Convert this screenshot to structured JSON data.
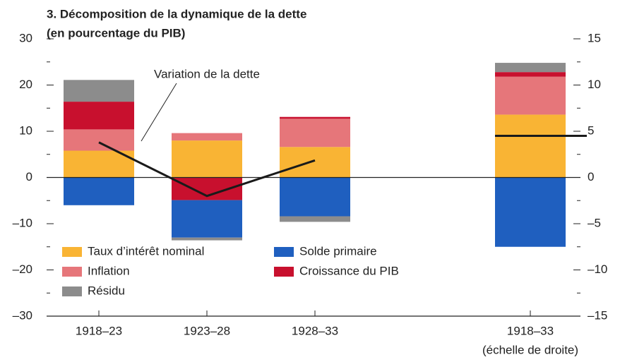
{
  "chart_data": {
    "type": "stacked_bar",
    "title": [
      "3. Décomposition de la dynamique de la dette",
      "(en pourcentage du PIB)"
    ],
    "categories": [
      "1918–23",
      "1923–28",
      "1928–33",
      "1918–33"
    ],
    "x_note": "(échelle de droite)",
    "category_axis": [
      "y",
      "y",
      "y",
      "y2"
    ],
    "series": [
      {
        "name": "Taux d’intérêt nominal",
        "color": "#f9b434",
        "values": [
          5.8,
          8.0,
          6.6,
          6.8
        ]
      },
      {
        "name": "Inflation",
        "color": "#e6767a",
        "values": [
          4.6,
          1.6,
          6.1,
          4.1
        ]
      },
      {
        "name": "Croissance du PIB",
        "color": "#c8102e",
        "values": [
          6.0,
          -4.9,
          0.4,
          0.5
        ]
      },
      {
        "name": "Solde primaire",
        "color": "#1f5fbf",
        "values": [
          -6.0,
          -8.1,
          -8.4,
          -7.5
        ]
      },
      {
        "name": "Résidu",
        "color": "#8c8c8c",
        "values": [
          4.7,
          -0.6,
          -1.2,
          1.0
        ]
      }
    ],
    "line": {
      "name": "Variation de la dette",
      "color": "#1a1a1a",
      "values": [
        7.6,
        -4.0,
        3.7,
        4.5
      ]
    },
    "ylim": [
      -30,
      30
    ],
    "yticks": [
      {
        "value": -30,
        "label": "–30"
      },
      {
        "value": -20,
        "label": "–20"
      },
      {
        "value": -10,
        "label": "–10"
      },
      0,
      10,
      20,
      30
    ],
    "yticks_minor": [
      -25,
      -15,
      -5,
      5,
      15,
      25
    ],
    "y2lim": [
      -15,
      15
    ],
    "y2ticks": [
      {
        "value": -15,
        "label": "–15"
      },
      {
        "value": -10,
        "label": "–10"
      },
      {
        "value": -5,
        "label": "–5"
      },
      0,
      5,
      10,
      15
    ],
    "y2ticks_minor": [
      -12.5,
      -7.5,
      -2.5,
      2.5,
      7.5,
      12.5
    ]
  }
}
